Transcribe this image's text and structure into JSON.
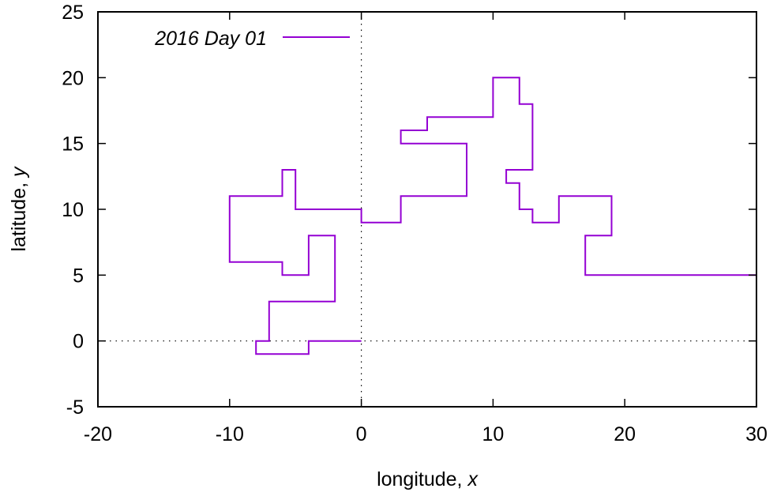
{
  "chart_data": {
    "type": "line",
    "line_style": "step",
    "xlabel": "longitude, ",
    "xlabel_var": "x",
    "ylabel": "latitude, ",
    "ylabel_var": "y",
    "xlim": [
      -20,
      30
    ],
    "ylim": [
      -5,
      25
    ],
    "x_ticks": [
      -20,
      -10,
      0,
      10,
      20,
      30
    ],
    "y_ticks": [
      -5,
      0,
      5,
      10,
      15,
      20,
      25
    ],
    "x_tick_labels": [
      "-20",
      "-10",
      "0",
      "10",
      "20",
      "30"
    ],
    "y_tick_labels": [
      "-5",
      "0",
      "5",
      "10",
      "15",
      "20",
      "25"
    ],
    "zero_lines": true,
    "grid": false,
    "legend_position": "top-left",
    "series": [
      {
        "name": "2016 Day 01",
        "color": "#9400d3",
        "points": [
          [
            0,
            0
          ],
          [
            -4,
            0
          ],
          [
            -4,
            -1
          ],
          [
            -8,
            -1
          ],
          [
            -8,
            0
          ],
          [
            -7,
            0
          ],
          [
            -7,
            3
          ],
          [
            -2,
            3
          ],
          [
            -2,
            8
          ],
          [
            -4,
            8
          ],
          [
            -4,
            5
          ],
          [
            -6,
            5
          ],
          [
            -6,
            6
          ],
          [
            -10,
            6
          ],
          [
            -10,
            11
          ],
          [
            -6,
            11
          ],
          [
            -6,
            13
          ],
          [
            -5,
            13
          ],
          [
            -5,
            10
          ],
          [
            0,
            10
          ],
          [
            0,
            9
          ],
          [
            3,
            9
          ],
          [
            3,
            11
          ],
          [
            8,
            11
          ],
          [
            8,
            15
          ],
          [
            3,
            15
          ],
          [
            3,
            16
          ],
          [
            5,
            16
          ],
          [
            5,
            17
          ],
          [
            10,
            17
          ],
          [
            10,
            20
          ],
          [
            12,
            20
          ],
          [
            12,
            18
          ],
          [
            13,
            18
          ],
          [
            13,
            13
          ],
          [
            11,
            13
          ],
          [
            11,
            12
          ],
          [
            12,
            12
          ],
          [
            12,
            10
          ],
          [
            13,
            10
          ],
          [
            13,
            9
          ],
          [
            15,
            9
          ],
          [
            15,
            11
          ],
          [
            19,
            11
          ],
          [
            19,
            8
          ],
          [
            17,
            8
          ],
          [
            17,
            5
          ],
          [
            30,
            5
          ]
        ]
      }
    ]
  }
}
